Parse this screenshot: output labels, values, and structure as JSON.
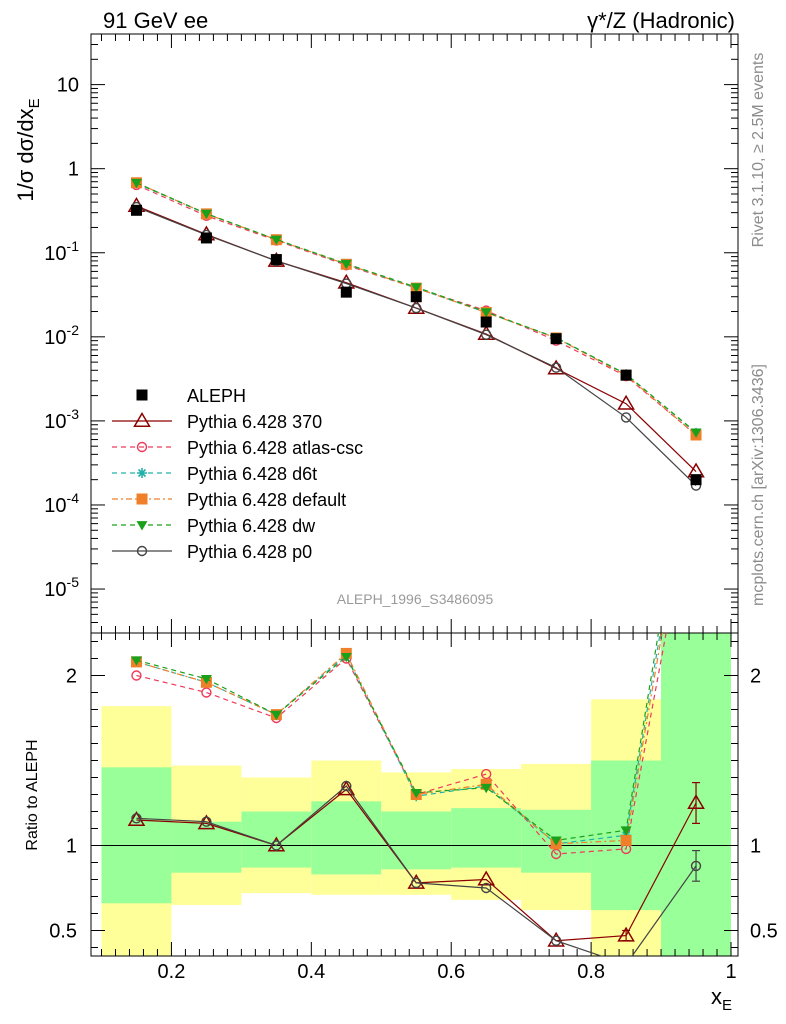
{
  "header": {
    "left": "91 GeV ee",
    "right": "γ*/Z (Hadronic)"
  },
  "side_text": {
    "top": "Rivet 3.1.10, ≥ 2.5M events",
    "bottom": "mcplots.cern.ch [arXiv:1306.3436]"
  },
  "watermark": "ALEPH_1996_S3486095",
  "chart_data": [
    {
      "type": "line",
      "panel": "main",
      "ylabel": "1/σ dσ/dx_E",
      "yscale": "log",
      "ylim": [
        3e-06,
        40
      ],
      "xlim": [
        0.085,
        1.01
      ],
      "y_ticks": [
        {
          "v": 10,
          "label": "10"
        },
        {
          "v": 1,
          "label": "1"
        },
        {
          "v": 0.1,
          "label": "10^-1"
        },
        {
          "v": 0.01,
          "label": "10^-2"
        },
        {
          "v": 0.001,
          "label": "10^-3"
        },
        {
          "v": 0.0001,
          "label": "10^-4"
        },
        {
          "v": 1e-05,
          "label": "10^-5"
        }
      ],
      "x": [
        0.15,
        0.25,
        0.35,
        0.45,
        0.55,
        0.65,
        0.75,
        0.85,
        0.95
      ],
      "series": [
        {
          "name": "ALEPH",
          "key": "aleph",
          "color": "#000000",
          "values": [
            0.32,
            0.15,
            0.083,
            0.034,
            0.03,
            0.015,
            0.0095,
            0.0035,
            0.0002
          ]
        },
        {
          "name": "Pythia 6.428 370",
          "key": "p370",
          "color": "#8b0000",
          "values": [
            0.36,
            0.165,
            0.08,
            0.044,
            0.022,
            0.0108,
            0.0042,
            0.0016,
            0.00025
          ]
        },
        {
          "name": "Pythia 6.428 atlas-csc",
          "key": "atlas",
          "color": "#ee3a5a",
          "values": [
            0.64,
            0.275,
            0.14,
            0.071,
            0.038,
            0.0205,
            0.009,
            0.0034,
            0.00068
          ]
        },
        {
          "name": "Pythia 6.428 d6t",
          "key": "d6t",
          "color": "#20b2aa",
          "values": [
            0.67,
            0.29,
            0.143,
            0.073,
            0.038,
            0.0195,
            0.0097,
            0.0036,
            0.00072
          ]
        },
        {
          "name": "Pythia 6.428 default",
          "key": "default",
          "color": "#f07f2a",
          "values": [
            0.68,
            0.29,
            0.143,
            0.073,
            0.038,
            0.0195,
            0.0097,
            0.0035,
            0.00068
          ]
        },
        {
          "name": "Pythia 6.428 dw",
          "key": "dw",
          "color": "#1aa01a",
          "values": [
            0.68,
            0.292,
            0.144,
            0.074,
            0.039,
            0.0197,
            0.0098,
            0.0036,
            0.00073
          ]
        },
        {
          "name": "Pythia 6.428 p0",
          "key": "p0",
          "color": "#444444",
          "values": [
            0.35,
            0.163,
            0.08,
            0.043,
            0.022,
            0.0106,
            0.0043,
            0.0011,
            0.00017
          ]
        }
      ],
      "legend_position": "bottom-left"
    },
    {
      "type": "line",
      "panel": "ratio",
      "ylabel": "Ratio to ALEPH",
      "xlabel": "x_E",
      "ylim": [
        0.35,
        2.25
      ],
      "xlim": [
        0.085,
        1.01
      ],
      "y_ticks": [
        {
          "v": 0.5,
          "label": "0.5"
        },
        {
          "v": 1,
          "label": "1"
        },
        {
          "v": 2,
          "label": "2"
        }
      ],
      "x_ticks": [
        {
          "v": 0.2,
          "label": "0.2"
        },
        {
          "v": 0.4,
          "label": "0.4"
        },
        {
          "v": 0.6,
          "label": "0.6"
        },
        {
          "v": 0.8,
          "label": "0.8"
        },
        {
          "v": 1.0,
          "label": "1"
        }
      ],
      "bands": [
        {
          "x0": 0.1,
          "x1": 0.2,
          "green": [
            0.66,
            1.46
          ],
          "yellow": [
            0.3,
            1.82
          ]
        },
        {
          "x0": 0.2,
          "x1": 0.3,
          "green": [
            0.84,
            1.14
          ],
          "yellow": [
            0.65,
            1.47
          ]
        },
        {
          "x0": 0.3,
          "x1": 0.4,
          "green": [
            0.87,
            1.2
          ],
          "yellow": [
            0.72,
            1.4
          ]
        },
        {
          "x0": 0.4,
          "x1": 0.5,
          "green": [
            0.83,
            1.26
          ],
          "yellow": [
            0.71,
            1.5
          ]
        },
        {
          "x0": 0.5,
          "x1": 0.6,
          "green": [
            0.86,
            1.2
          ],
          "yellow": [
            0.71,
            1.43
          ]
        },
        {
          "x0": 0.6,
          "x1": 0.7,
          "green": [
            0.87,
            1.22
          ],
          "yellow": [
            0.68,
            1.45
          ]
        },
        {
          "x0": 0.7,
          "x1": 0.8,
          "green": [
            0.84,
            1.21
          ],
          "yellow": [
            0.62,
            1.48
          ]
        },
        {
          "x0": 0.8,
          "x1": 0.9,
          "green": [
            0.62,
            1.5
          ],
          "yellow": [
            0.3,
            1.86
          ]
        },
        {
          "x0": 0.9,
          "x1": 1.0,
          "green": [
            0.3,
            2.4
          ],
          "yellow": [
            0.3,
            2.4
          ]
        }
      ],
      "x": [
        0.15,
        0.25,
        0.35,
        0.45,
        0.55,
        0.65,
        0.75,
        0.85,
        0.95
      ],
      "series": [
        {
          "name": "Pythia 6.428 370",
          "key": "p370",
          "values": [
            1.15,
            1.13,
            1.0,
            1.33,
            0.78,
            0.8,
            0.44,
            0.47,
            1.25
          ],
          "errors": [
            0,
            0,
            0,
            0,
            0,
            0,
            0,
            0.03,
            0.12
          ]
        },
        {
          "name": "Pythia 6.428 atlas-csc",
          "key": "atlas",
          "values": [
            2.0,
            1.9,
            1.75,
            2.1,
            1.3,
            1.42,
            0.95,
            0.98,
            3.2
          ]
        },
        {
          "name": "Pythia 6.428 d6t",
          "key": "d6t",
          "values": [
            2.08,
            1.96,
            1.77,
            2.12,
            1.29,
            1.35,
            1.01,
            1.06,
            3.5
          ]
        },
        {
          "name": "Pythia 6.428 default",
          "key": "default",
          "values": [
            2.08,
            1.96,
            1.77,
            2.13,
            1.3,
            1.36,
            1.01,
            1.03,
            3.4
          ]
        },
        {
          "name": "Pythia 6.428 dw",
          "key": "dw",
          "values": [
            2.09,
            1.98,
            1.77,
            2.11,
            1.31,
            1.34,
            1.03,
            1.09,
            3.6
          ]
        },
        {
          "name": "Pythia 6.428 p0",
          "key": "p0",
          "values": [
            1.16,
            1.14,
            1.0,
            1.35,
            0.78,
            0.75,
            0.44,
            0.3,
            0.88
          ],
          "errors": [
            0,
            0,
            0,
            0,
            0,
            0,
            0,
            0,
            0.09
          ]
        }
      ]
    }
  ]
}
